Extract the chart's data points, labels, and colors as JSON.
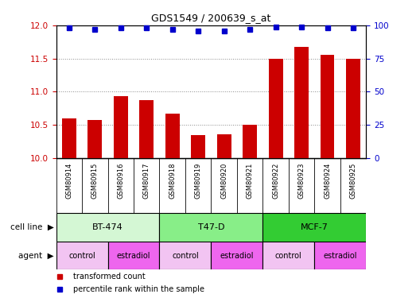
{
  "title": "GDS1549 / 200639_s_at",
  "samples": [
    "GSM80914",
    "GSM80915",
    "GSM80916",
    "GSM80917",
    "GSM80918",
    "GSM80919",
    "GSM80920",
    "GSM80921",
    "GSM80922",
    "GSM80923",
    "GSM80924",
    "GSM80925"
  ],
  "transformed_counts": [
    10.6,
    10.57,
    10.93,
    10.87,
    10.67,
    10.35,
    10.36,
    10.5,
    11.5,
    11.67,
    11.55,
    11.5
  ],
  "percentile_ranks": [
    98,
    97,
    98,
    98,
    97,
    96,
    96,
    97,
    99,
    99,
    98,
    98
  ],
  "cell_lines": [
    {
      "label": "BT-474",
      "start": 0,
      "end": 4,
      "color": "#d4f7d4"
    },
    {
      "label": "T47-D",
      "start": 4,
      "end": 8,
      "color": "#88ee88"
    },
    {
      "label": "MCF-7",
      "start": 8,
      "end": 12,
      "color": "#33cc33"
    }
  ],
  "agents": [
    {
      "label": "control",
      "start": 0,
      "end": 2,
      "color": "#f2c4f2"
    },
    {
      "label": "estradiol",
      "start": 2,
      "end": 4,
      "color": "#ee66ee"
    },
    {
      "label": "control",
      "start": 4,
      "end": 6,
      "color": "#f2c4f2"
    },
    {
      "label": "estradiol",
      "start": 6,
      "end": 8,
      "color": "#ee66ee"
    },
    {
      "label": "control",
      "start": 8,
      "end": 10,
      "color": "#f2c4f2"
    },
    {
      "label": "estradiol",
      "start": 10,
      "end": 12,
      "color": "#ee66ee"
    }
  ],
  "ylim_left": [
    10,
    12
  ],
  "yticks_left": [
    10,
    10.5,
    11,
    11.5,
    12
  ],
  "ylim_right": [
    0,
    100
  ],
  "yticks_right": [
    0,
    25,
    50,
    75,
    100
  ],
  "bar_color": "#cc0000",
  "dot_color": "#0000cc",
  "tick_area_color": "#cccccc",
  "grid_color": "#888888"
}
